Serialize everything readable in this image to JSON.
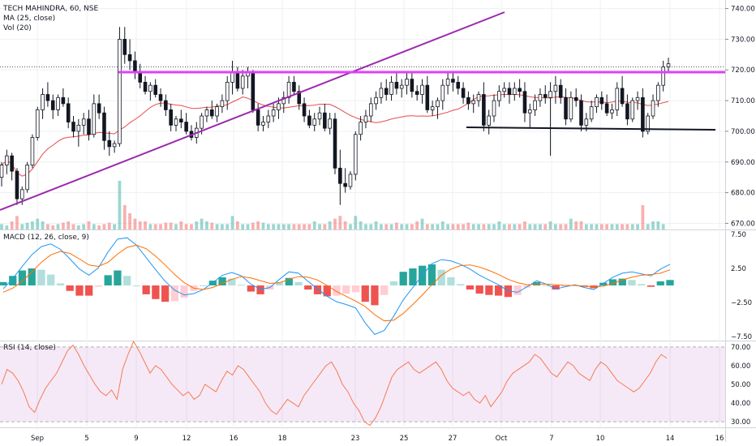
{
  "chart_data": [
    {
      "type": "candlestick",
      "panel": "price",
      "title": "TECH MAHINDRA, 60, NSE",
      "indicators": [
        "MA (25, close)",
        "Vol (20)"
      ],
      "ylim": [
        668,
        742
      ],
      "yticks": [
        670,
        680,
        690,
        700,
        710,
        720,
        730,
        740
      ],
      "ytick_labels": [
        "670.00",
        "680.00",
        "690.00",
        "700.00",
        "710.00",
        "720.00",
        "730.00",
        "740.00"
      ],
      "xtick_labels": [
        "Sep",
        "5",
        "9",
        "12",
        "16",
        "18",
        "23",
        "25",
        "27",
        "Oct",
        "7",
        "10",
        "14",
        "16"
      ],
      "current_price": 721,
      "candles": [
        [
          685,
          690,
          682,
          689
        ],
        [
          689,
          694,
          686,
          692
        ],
        [
          692,
          693,
          684,
          687
        ],
        [
          687,
          688,
          676,
          678
        ],
        [
          678,
          682,
          676,
          681
        ],
        [
          681,
          690,
          680,
          689
        ],
        [
          689,
          699,
          688,
          698
        ],
        [
          698,
          708,
          697,
          707
        ],
        [
          707,
          714,
          704,
          712
        ],
        [
          712,
          716,
          708,
          710
        ],
        [
          710,
          712,
          704,
          707
        ],
        [
          707,
          712,
          705,
          711
        ],
        [
          711,
          714,
          708,
          709
        ],
        [
          709,
          711,
          701,
          703
        ],
        [
          703,
          705,
          698,
          700
        ],
        [
          700,
          704,
          695,
          702
        ],
        [
          702,
          706,
          699,
          704
        ],
        [
          704,
          707,
          697,
          699
        ],
        [
          699,
          712,
          698,
          709
        ],
        [
          709,
          712,
          704,
          706
        ],
        [
          706,
          708,
          694,
          697
        ],
        [
          697,
          700,
          692,
          695
        ],
        [
          695,
          697,
          693,
          696
        ],
        [
          696,
          734,
          695,
          730
        ],
        [
          730,
          734,
          722,
          725
        ],
        [
          725,
          730,
          720,
          723
        ],
        [
          723,
          726,
          717,
          719
        ],
        [
          719,
          722,
          714,
          716
        ],
        [
          716,
          718,
          712,
          713
        ],
        [
          713,
          716,
          710,
          715
        ],
        [
          715,
          717,
          711,
          712
        ],
        [
          712,
          714,
          708,
          710
        ],
        [
          710,
          712,
          705,
          707
        ],
        [
          707,
          709,
          700,
          702
        ],
        [
          702,
          705,
          700,
          704
        ],
        [
          704,
          707,
          701,
          703
        ],
        [
          703,
          706,
          699,
          700
        ],
        [
          700,
          702,
          697,
          698
        ],
        [
          698,
          703,
          696,
          701
        ],
        [
          701,
          706,
          699,
          705
        ],
        [
          705,
          708,
          703,
          707
        ],
        [
          707,
          710,
          704,
          705
        ],
        [
          705,
          709,
          703,
          708
        ],
        [
          708,
          712,
          706,
          710
        ],
        [
          710,
          718,
          707,
          716
        ],
        [
          716,
          723,
          712,
          719
        ],
        [
          719,
          721,
          713,
          714
        ],
        [
          714,
          720,
          712,
          718
        ],
        [
          718,
          721,
          714,
          719
        ],
        [
          719,
          720,
          706,
          707
        ],
        [
          707,
          709,
          700,
          702
        ],
        [
          702,
          705,
          700,
          703
        ],
        [
          703,
          707,
          701,
          705
        ],
        [
          705,
          709,
          703,
          707
        ],
        [
          707,
          711,
          704,
          709
        ],
        [
          709,
          713,
          706,
          711
        ],
        [
          711,
          718,
          709,
          716
        ],
        [
          716,
          718,
          712,
          713
        ],
        [
          713,
          715,
          707,
          709
        ],
        [
          709,
          711,
          703,
          705
        ],
        [
          705,
          707,
          701,
          702
        ],
        [
          702,
          706,
          700,
          704
        ],
        [
          704,
          708,
          702,
          706
        ],
        [
          706,
          709,
          700,
          701
        ],
        [
          701,
          706,
          699,
          704
        ],
        [
          704,
          706,
          686,
          688
        ],
        [
          688,
          694,
          676,
          683
        ],
        [
          683,
          688,
          680,
          682
        ],
        [
          682,
          687,
          681,
          686
        ],
        [
          686,
          700,
          684,
          699
        ],
        [
          699,
          705,
          697,
          703
        ],
        [
          703,
          707,
          701,
          705
        ],
        [
          705,
          711,
          703,
          709
        ],
        [
          709,
          713,
          707,
          711
        ],
        [
          711,
          716,
          709,
          714
        ],
        [
          714,
          717,
          710,
          712
        ],
        [
          712,
          718,
          710,
          716
        ],
        [
          716,
          719,
          712,
          714
        ],
        [
          714,
          717,
          711,
          715
        ],
        [
          715,
          719,
          712,
          717
        ],
        [
          717,
          719,
          711,
          713
        ],
        [
          713,
          715,
          710,
          712
        ],
        [
          712,
          717,
          709,
          715
        ],
        [
          715,
          718,
          706,
          707
        ],
        [
          707,
          710,
          705,
          708
        ],
        [
          708,
          711,
          704,
          710
        ],
        [
          710,
          717,
          707,
          715
        ],
        [
          715,
          719,
          712,
          717
        ],
        [
          717,
          719,
          713,
          716
        ],
        [
          716,
          718,
          712,
          714
        ],
        [
          714,
          716,
          709,
          711
        ],
        [
          711,
          713,
          707,
          709
        ],
        [
          709,
          712,
          706,
          710
        ],
        [
          710,
          713,
          708,
          712
        ],
        [
          712,
          716,
          700,
          702
        ],
        [
          702,
          707,
          699,
          705
        ],
        [
          705,
          712,
          703,
          710
        ],
        [
          710,
          715,
          708,
          713
        ],
        [
          713,
          716,
          711,
          714
        ],
        [
          714,
          716,
          709,
          712
        ],
        [
          712,
          716,
          710,
          714
        ],
        [
          714,
          717,
          711,
          713
        ],
        [
          713,
          716,
          703,
          706
        ],
        [
          706,
          709,
          701,
          707
        ],
        [
          707,
          712,
          705,
          710
        ],
        [
          710,
          714,
          708,
          712
        ],
        [
          712,
          715,
          709,
          711
        ],
        [
          711,
          716,
          692,
          713
        ],
        [
          713,
          718,
          709,
          715
        ],
        [
          715,
          717,
          709,
          711
        ],
        [
          711,
          714,
          702,
          704
        ],
        [
          704,
          713,
          703,
          711
        ],
        [
          711,
          714,
          708,
          710
        ],
        [
          710,
          712,
          700,
          702
        ],
        [
          702,
          706,
          700,
          704
        ],
        [
          704,
          710,
          703,
          708
        ],
        [
          708,
          712,
          706,
          711
        ],
        [
          711,
          713,
          707,
          709
        ],
        [
          709,
          712,
          705,
          706
        ],
        [
          706,
          709,
          704,
          707
        ],
        [
          707,
          716,
          705,
          714
        ],
        [
          714,
          718,
          708,
          709
        ],
        [
          709,
          712,
          702,
          704
        ],
        [
          704,
          711,
          703,
          710
        ],
        [
          710,
          713,
          707,
          711
        ],
        [
          711,
          714,
          698,
          700
        ],
        [
          700,
          706,
          699,
          705
        ],
        [
          705,
          712,
          704,
          710
        ],
        [
          710,
          716,
          708,
          715
        ],
        [
          715,
          723,
          713,
          721
        ],
        [
          721,
          724,
          719,
          722
        ]
      ],
      "volume": [
        2,
        1.5,
        3,
        5,
        2,
        2.5,
        3,
        4,
        3,
        2,
        1.5,
        2,
        2.5,
        3,
        2,
        1.5,
        2,
        3,
        2,
        1.5,
        2,
        2.5,
        2,
        18,
        9,
        6,
        4,
        3,
        3,
        2,
        2,
        2,
        2.5,
        2.5,
        2,
        3,
        2,
        2,
        3,
        4,
        3,
        2.5,
        2,
        2,
        2,
        5,
        3,
        2,
        2,
        2.5,
        3,
        2.5,
        2,
        2,
        2,
        2,
        2,
        2,
        2,
        2,
        2,
        3,
        2,
        2,
        3,
        4,
        5,
        3,
        2,
        5,
        3,
        2,
        2,
        3,
        2,
        2,
        2,
        2.5,
        2,
        2,
        2,
        3,
        4,
        2,
        2,
        2,
        3,
        2,
        2,
        2,
        2,
        2.5,
        2,
        2,
        2,
        2,
        2,
        3,
        2,
        2,
        2,
        2,
        3,
        2,
        2,
        2,
        2,
        3,
        2,
        2,
        2,
        4,
        3,
        3,
        2,
        2,
        2,
        2,
        2,
        2,
        2,
        2,
        2,
        2,
        2,
        9,
        2,
        3,
        3,
        2
      ]
    },
    {
      "type": "line",
      "panel": "macd",
      "title": "MACD (12, 26, close, 9)",
      "ylim": [
        -7.5,
        7.5
      ],
      "yticks": [
        7.5,
        2.5,
        -2.5,
        -7.5
      ],
      "ytick_labels": [
        "7.50",
        "2.50",
        "−2.50",
        "−7.50"
      ],
      "series": [
        {
          "key": "macd",
          "values": [
            -0.5,
            1.0,
            2.8,
            4.5,
            5.7,
            6.1,
            5.3,
            3.9,
            2.4,
            1.5,
            2.6,
            4.9,
            6.8,
            7.0,
            5.9,
            4.1,
            2.3,
            0.6,
            -0.7,
            -1.4,
            -1.2,
            -0.6,
            0.4,
            1.5,
            1.9,
            1.4,
            0.2,
            -0.6,
            -0.3,
            0.9,
            2.0,
            1.8,
            0.6,
            -0.5,
            -1.6,
            -2.4,
            -2.8,
            -3.3,
            -5.5,
            -7.2,
            -6.6,
            -4.5,
            -2.1,
            -0.3,
            1.5,
            3.2,
            3.8,
            3.6,
            3.1,
            2.4,
            1.5,
            0.8,
            0.1,
            -0.8,
            -1.0,
            -0.2,
            0.7,
            0.2,
            -0.5,
            -0.2,
            0.1,
            -0.3,
            -0.6,
            0.3,
            1.2,
            1.8,
            2.0,
            1.7,
            1.4,
            2.4,
            3.1
          ]
        },
        {
          "key": "signal",
          "values": [
            -1.0,
            -0.4,
            0.6,
            2.0,
            3.4,
            4.5,
            5.0,
            4.7,
            3.9,
            3.0,
            2.8,
            3.4,
            4.6,
            5.6,
            5.9,
            5.4,
            4.3,
            3.0,
            1.6,
            0.4,
            -0.4,
            -0.6,
            -0.3,
            0.3,
            0.9,
            1.3,
            1.1,
            0.7,
            0.3,
            0.4,
            0.9,
            1.3,
            1.2,
            0.8,
            0.0,
            -0.9,
            -1.6,
            -2.3,
            -3.1,
            -4.3,
            -5.2,
            -5.1,
            -4.1,
            -2.8,
            -1.4,
            0.1,
            1.5,
            2.4,
            2.9,
            3.0,
            2.7,
            2.2,
            1.6,
            0.9,
            0.4,
            0.1,
            0.2,
            0.2,
            0.1,
            0.0,
            0.0,
            -0.1,
            -0.2,
            -0.1,
            0.3,
            0.8,
            1.2,
            1.5,
            1.6,
            1.8,
            2.3
          ]
        }
      ]
    },
    {
      "type": "line",
      "panel": "rsi",
      "title": "RSI (14, close)",
      "ylim": [
        27,
        73
      ],
      "yticks": [
        70,
        60,
        50,
        40,
        30
      ],
      "ytick_labels": [
        "70.00",
        "60.00",
        "50.00",
        "40.00",
        "30.00"
      ],
      "band": [
        30,
        70
      ],
      "values": [
        50,
        58,
        56,
        52,
        46,
        38,
        35,
        42,
        48,
        52,
        56,
        62,
        68,
        71,
        66,
        60,
        55,
        50,
        46,
        44,
        47,
        42,
        58,
        66,
        73,
        68,
        62,
        56,
        60,
        58,
        54,
        50,
        47,
        44,
        46,
        42,
        44,
        50,
        48,
        46,
        52,
        57,
        55,
        60,
        58,
        54,
        50,
        46,
        40,
        36,
        34,
        38,
        42,
        40,
        38,
        44,
        48,
        52,
        56,
        60,
        62,
        57,
        50,
        46,
        40,
        36,
        30,
        28,
        32,
        38,
        46,
        54,
        58,
        60,
        62,
        58,
        56,
        58,
        60,
        62,
        58,
        52,
        48,
        46,
        44,
        46,
        42,
        40,
        44,
        38,
        42,
        46,
        52,
        56,
        58,
        60,
        62,
        66,
        64,
        60,
        56,
        54,
        58,
        62,
        60,
        56,
        54,
        52,
        58,
        62,
        60,
        56,
        52,
        50,
        48,
        46,
        48,
        52,
        56,
        62,
        66,
        64
      ]
    }
  ]
}
